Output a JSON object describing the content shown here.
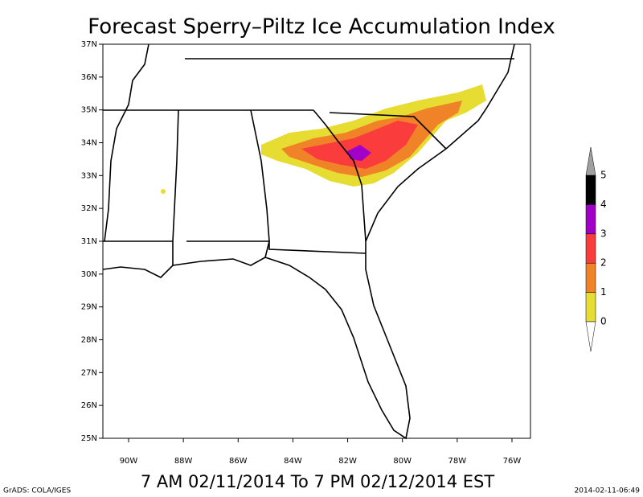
{
  "title": "Forecast Sperry–Piltz Ice Accumulation Index",
  "subtitle": "7 AM 02/11/2014 To 7 PM 02/12/2014 EST",
  "footer_left": "GrADS: COLA/IGES",
  "footer_right": "2014-02-11-06:49",
  "map": {
    "lat_ticks": [
      {
        "value": 37,
        "label": "37N"
      },
      {
        "value": 36,
        "label": "36N"
      },
      {
        "value": 35,
        "label": "35N"
      },
      {
        "value": 34,
        "label": "34N"
      },
      {
        "value": 33,
        "label": "33N"
      },
      {
        "value": 32,
        "label": "32N"
      },
      {
        "value": 31,
        "label": "31N"
      },
      {
        "value": 30,
        "label": "30N"
      },
      {
        "value": 29,
        "label": "29N"
      },
      {
        "value": 28,
        "label": "28N"
      },
      {
        "value": 27,
        "label": "27N"
      },
      {
        "value": 26,
        "label": "26N"
      },
      {
        "value": 25,
        "label": "25N"
      }
    ],
    "lon_ticks": [
      {
        "value": -90,
        "label": "90W"
      },
      {
        "value": -88,
        "label": "88W"
      },
      {
        "value": -86,
        "label": "86W"
      },
      {
        "value": -84,
        "label": "84W"
      },
      {
        "value": -82,
        "label": "82W"
      },
      {
        "value": -80,
        "label": "80W"
      },
      {
        "value": -78,
        "label": "78W"
      },
      {
        "value": -76,
        "label": "76W"
      }
    ]
  },
  "colorbar": {
    "levels": [
      0,
      1,
      2,
      3,
      4,
      5
    ],
    "colors": [
      "#e6dc32",
      "#f08228",
      "#fa3c3c",
      "#a000c8",
      "#000000"
    ],
    "over_color": "#a0a0a0",
    "under_color": "#ffffff"
  }
}
